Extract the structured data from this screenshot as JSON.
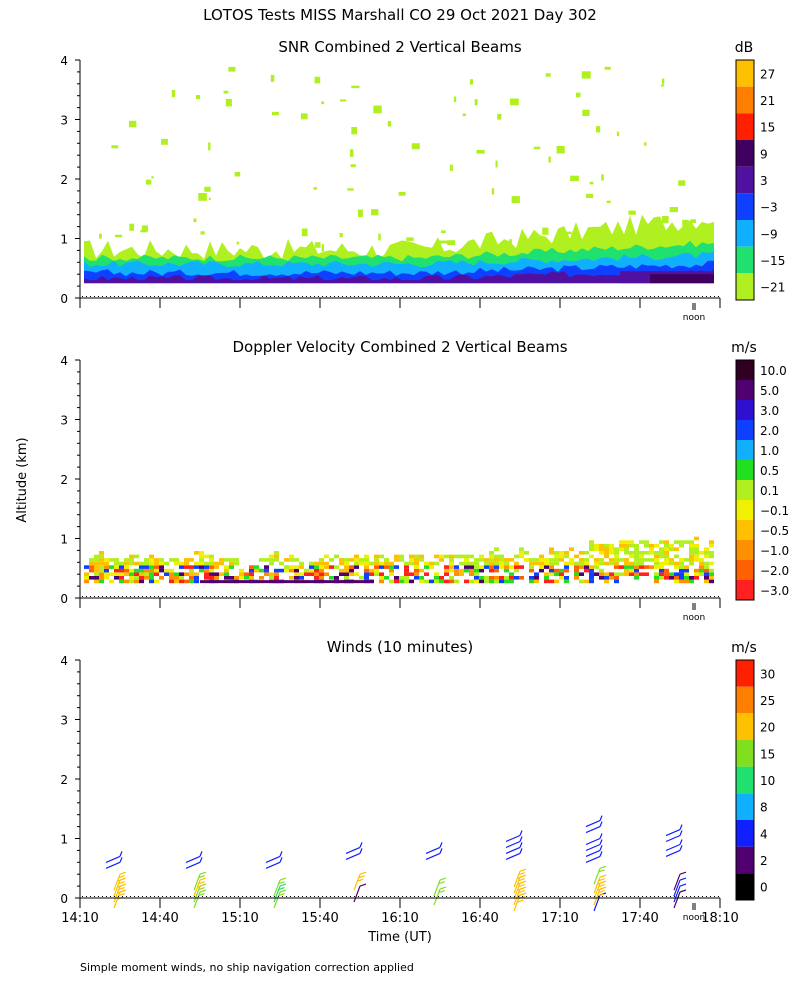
{
  "figure": {
    "title": "LOTOS Tests MISS Marshall CO  29 Oct 2021 Day 302",
    "ylabel": "Altitude (km)",
    "xlabel": "Time (UT)",
    "footnote": "Simple moment winds, no ship navigation correction applied",
    "noon_label": "noon",
    "x_ticks": [
      "14:10",
      "14:40",
      "15:10",
      "15:40",
      "16:10",
      "16:40",
      "17:10",
      "17:40",
      "18:10"
    ],
    "y_ticks": [
      "0",
      "1",
      "2",
      "3",
      "4"
    ]
  },
  "chart_data": [
    {
      "type": "heatmap",
      "title": "SNR Combined 2 Vertical Beams",
      "xlabel": "Time (UT)",
      "ylabel": "Altitude (km)",
      "units": "dB",
      "ylim": [
        0,
        4
      ],
      "colorbar": {
        "labels": [
          "27",
          "21",
          "15",
          "9",
          "3",
          "−3",
          "−9",
          "−15",
          "−21"
        ],
        "colors": [
          "#ffc000",
          "#ff8000",
          "#ff2000",
          "#400060",
          "#5010a0",
          "#1040ff",
          "#10b0ff",
          "#20e070",
          "#b0f020"
        ]
      },
      "layers": [
        {
          "label": "−21 dB",
          "color": "#b0f020",
          "base_top_km": 0.75,
          "late_top_km": 1.3
        },
        {
          "label": "−15 dB",
          "color": "#20e070",
          "base_top_km": 0.65,
          "late_top_km": 0.9
        },
        {
          "label": "−9 dB",
          "color": "#10b0ff",
          "base_top_km": 0.55,
          "late_top_km": 0.7
        },
        {
          "label": "−3 dB",
          "color": "#1040ff",
          "base_top_km": 0.4,
          "late_top_km": 0.55
        },
        {
          "label": "3 dB",
          "color": "#5010a0",
          "base_top_km": 0.3,
          "late_top_km": 0.45
        }
      ]
    },
    {
      "type": "heatmap",
      "title": "Doppler Velocity Combined 2 Vertical Beams",
      "xlabel": "Time (UT)",
      "ylabel": "Altitude (km)",
      "units": "m/s",
      "ylim": [
        0,
        4
      ],
      "colorbar": {
        "labels": [
          "10.0",
          "5.0",
          "3.0",
          "2.0",
          "1.0",
          "0.5",
          "0.1",
          "−0.1",
          "−0.5",
          "−1.0",
          "−2.0",
          "−3.0"
        ],
        "colors": [
          "#300020",
          "#500070",
          "#3010d0",
          "#1040ff",
          "#10b0ff",
          "#20e020",
          "#b0f020",
          "#f0f000",
          "#ffc000",
          "#ff9000",
          "#ff6000",
          "#ff2020"
        ]
      }
    },
    {
      "type": "scatter",
      "title": "Winds (10 minutes)",
      "xlabel": "Time (UT)",
      "ylabel": "Altitude (km)",
      "units": "m/s",
      "ylim": [
        0,
        4
      ],
      "colorbar": {
        "labels": [
          "30",
          "25",
          "20",
          "15",
          "10",
          "8",
          "4",
          "2",
          "0"
        ],
        "colors": [
          "#ff2000",
          "#ff8000",
          "#ffc000",
          "#80e020",
          "#20e070",
          "#10b0ff",
          "#1020ff",
          "#500070",
          "#000000"
        ]
      },
      "profiles": [
        {
          "time": "14:25",
          "barbs": [
            {
              "alt_km": 0.1,
              "speed": 20
            },
            {
              "alt_km": 0.2,
              "speed": 20
            },
            {
              "alt_km": 0.3,
              "speed": 22
            },
            {
              "alt_km": 0.4,
              "speed": 20
            },
            {
              "alt_km": 0.6,
              "speed": 4
            },
            {
              "alt_km": 0.7,
              "speed": 4
            }
          ]
        },
        {
          "time": "14:55",
          "barbs": [
            {
              "alt_km": 0.1,
              "speed": 15
            },
            {
              "alt_km": 0.2,
              "speed": 18
            },
            {
              "alt_km": 0.3,
              "speed": 20
            },
            {
              "alt_km": 0.4,
              "speed": 18
            },
            {
              "alt_km": 0.6,
              "speed": 4
            },
            {
              "alt_km": 0.7,
              "speed": 4
            }
          ]
        },
        {
          "time": "15:25",
          "barbs": [
            {
              "alt_km": 0.1,
              "speed": 15
            },
            {
              "alt_km": 0.2,
              "speed": 12
            },
            {
              "alt_km": 0.3,
              "speed": 15
            },
            {
              "alt_km": 0.6,
              "speed": 4
            },
            {
              "alt_km": 0.7,
              "speed": 4
            }
          ]
        },
        {
          "time": "15:55",
          "barbs": [
            {
              "alt_km": 0.2,
              "speed": 2
            },
            {
              "alt_km": 0.4,
              "speed": 20
            },
            {
              "alt_km": 0.75,
              "speed": 4
            },
            {
              "alt_km": 0.85,
              "speed": 4
            }
          ]
        },
        {
          "time": "16:25",
          "barbs": [
            {
              "alt_km": 0.15,
              "speed": 15
            },
            {
              "alt_km": 0.3,
              "speed": 15
            },
            {
              "alt_km": 0.75,
              "speed": 4
            },
            {
              "alt_km": 0.85,
              "speed": 4
            }
          ]
        },
        {
          "time": "16:55",
          "barbs": [
            {
              "alt_km": 0.05,
              "speed": 20
            },
            {
              "alt_km": 0.15,
              "speed": 20
            },
            {
              "alt_km": 0.25,
              "speed": 22
            },
            {
              "alt_km": 0.35,
              "speed": 20
            },
            {
              "alt_km": 0.45,
              "speed": 22
            },
            {
              "alt_km": 0.75,
              "speed": 4
            },
            {
              "alt_km": 0.85,
              "speed": 4
            },
            {
              "alt_km": 0.95,
              "speed": 4
            },
            {
              "alt_km": 1.05,
              "speed": 4
            }
          ]
        },
        {
          "time": "17:25",
          "barbs": [
            {
              "alt_km": 0.05,
              "speed": 4
            },
            {
              "alt_km": 0.15,
              "speed": 20
            },
            {
              "alt_km": 0.25,
              "speed": 20
            },
            {
              "alt_km": 0.35,
              "speed": 20
            },
            {
              "alt_km": 0.5,
              "speed": 18
            },
            {
              "alt_km": 0.7,
              "speed": 4
            },
            {
              "alt_km": 0.8,
              "speed": 4
            },
            {
              "alt_km": 0.9,
              "speed": 4
            },
            {
              "alt_km": 1.0,
              "speed": 4
            },
            {
              "alt_km": 1.2,
              "speed": 4
            },
            {
              "alt_km": 1.3,
              "speed": 4
            }
          ]
        },
        {
          "time": "17:55",
          "barbs": [
            {
              "alt_km": 0.1,
              "speed": 2
            },
            {
              "alt_km": 0.2,
              "speed": 4
            },
            {
              "alt_km": 0.3,
              "speed": 4
            },
            {
              "alt_km": 0.4,
              "speed": 2
            },
            {
              "alt_km": 0.8,
              "speed": 4
            },
            {
              "alt_km": 0.9,
              "speed": 4
            },
            {
              "alt_km": 1.05,
              "speed": 4
            },
            {
              "alt_km": 1.15,
              "speed": 4
            }
          ]
        }
      ]
    }
  ]
}
